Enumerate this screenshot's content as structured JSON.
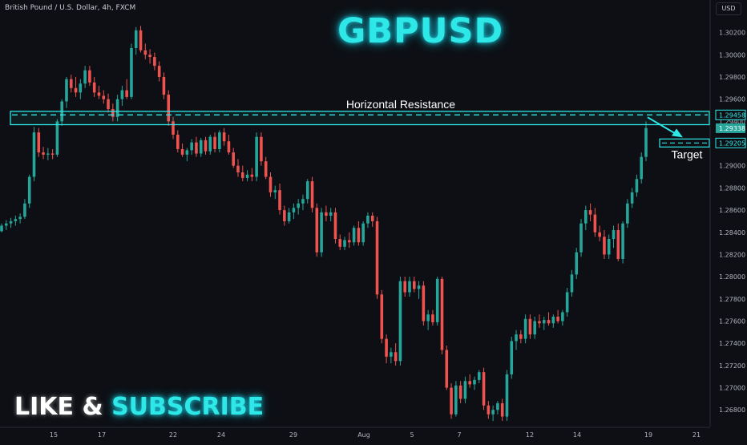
{
  "header": {
    "symbol": "British Pound / U.S. Dollar, 4h, FXCM",
    "currency": "USD"
  },
  "overlay": {
    "title": "GBPUSD",
    "cta_part1": "LIKE & ",
    "cta_part2": "SUBSCRIBE"
  },
  "colors": {
    "bull": "#26a69a",
    "bear": "#ef5350",
    "accent": "#2ee8e8",
    "background": "#0d0f14"
  },
  "chart_data": {
    "type": "candlestick",
    "title": "GBPUSD",
    "ylim": [
      1.2665,
      1.3045
    ],
    "y_ticks": [
      "1.30200",
      "1.30000",
      "1.29800",
      "1.29600",
      "1.29400",
      "1.29200",
      "1.29000",
      "1.28800",
      "1.28600",
      "1.28400",
      "1.28200",
      "1.28000",
      "1.27800",
      "1.27600",
      "1.27400",
      "1.27200",
      "1.27000",
      "1.26800"
    ],
    "x_ticks": [
      "15",
      "17",
      "22",
      "24",
      "29",
      "Aug",
      "5",
      "7",
      "12",
      "14",
      "19",
      "21"
    ],
    "price_labels": [
      {
        "text": "1.29458",
        "style": "outline"
      },
      {
        "text": "1.29338",
        "style": "green"
      },
      {
        "text": "1.29205",
        "style": "outline"
      }
    ],
    "annotations": {
      "resistance_label": "Horizontal Resistance",
      "resistance_low": 1.2937,
      "resistance_high": 1.2949,
      "resistance_level": 1.29458,
      "target_label": "Target",
      "target_level": 1.29205,
      "grid": false
    },
    "ohlc": [
      [
        1.2841,
        1.2848,
        1.284,
        1.2846
      ],
      [
        1.2846,
        1.2851,
        1.2842,
        1.2848
      ],
      [
        1.2848,
        1.2853,
        1.2844,
        1.285
      ],
      [
        1.285,
        1.2855,
        1.2846,
        1.2852
      ],
      [
        1.2852,
        1.2857,
        1.2848,
        1.2854
      ],
      [
        1.2854,
        1.287,
        1.2852,
        1.2866
      ],
      [
        1.2866,
        1.2892,
        1.2862,
        1.289
      ],
      [
        1.289,
        1.2935,
        1.2886,
        1.293
      ],
      [
        1.293,
        1.2934,
        1.2908,
        1.2912
      ],
      [
        1.2912,
        1.2917,
        1.2906,
        1.291
      ],
      [
        1.291,
        1.2916,
        1.2905,
        1.2911
      ],
      [
        1.2911,
        1.2915,
        1.2906,
        1.291
      ],
      [
        1.291,
        1.2942,
        1.2908,
        1.294
      ],
      [
        1.294,
        1.296,
        1.2936,
        1.2958
      ],
      [
        1.2958,
        1.298,
        1.2952,
        1.2978
      ],
      [
        1.2978,
        1.2982,
        1.2966,
        1.297
      ],
      [
        1.297,
        1.298,
        1.2962,
        1.2966
      ],
      [
        1.2966,
        1.2978,
        1.296,
        1.2974
      ],
      [
        1.2974,
        1.299,
        1.297,
        1.2986
      ],
      [
        1.2986,
        1.299,
        1.2972,
        1.2975
      ],
      [
        1.2975,
        1.298,
        1.2962,
        1.2966
      ],
      [
        1.2966,
        1.2972,
        1.296,
        1.2963
      ],
      [
        1.2963,
        1.2968,
        1.2956,
        1.296
      ],
      [
        1.296,
        1.2965,
        1.2948,
        1.2951
      ],
      [
        1.2951,
        1.2956,
        1.294,
        1.2944
      ],
      [
        1.2944,
        1.2964,
        1.294,
        1.296
      ],
      [
        1.296,
        1.2972,
        1.2954,
        1.2968
      ],
      [
        1.2968,
        1.2978,
        1.296,
        1.2962
      ],
      [
        1.2962,
        1.301,
        1.296,
        1.3006
      ],
      [
        1.3006,
        1.3025,
        1.3,
        1.3022
      ],
      [
        1.3022,
        1.3026,
        1.3002,
        1.3004
      ],
      [
        1.3004,
        1.301,
        1.2996,
        1.3
      ],
      [
        1.3,
        1.3005,
        1.2992,
        1.2998
      ],
      [
        1.2998,
        1.3002,
        1.2986,
        1.299
      ],
      [
        1.299,
        1.2994,
        1.2976,
        1.298
      ],
      [
        1.298,
        1.2984,
        1.296,
        1.2964
      ],
      [
        1.2964,
        1.2968,
        1.2936,
        1.294
      ],
      [
        1.294,
        1.2944,
        1.2924,
        1.2928
      ],
      [
        1.2928,
        1.2932,
        1.2912,
        1.2915
      ],
      [
        1.2915,
        1.292,
        1.2908,
        1.291
      ],
      [
        1.291,
        1.2916,
        1.2904,
        1.2914
      ],
      [
        1.2914,
        1.2924,
        1.291,
        1.2921
      ],
      [
        1.2921,
        1.2926,
        1.2908,
        1.2911
      ],
      [
        1.2911,
        1.2925,
        1.2908,
        1.2923
      ],
      [
        1.2923,
        1.2926,
        1.291,
        1.2913
      ],
      [
        1.2913,
        1.2928,
        1.291,
        1.2926
      ],
      [
        1.2926,
        1.293,
        1.2912,
        1.2915
      ],
      [
        1.2915,
        1.2932,
        1.2912,
        1.293
      ],
      [
        1.293,
        1.2934,
        1.2918,
        1.2922
      ],
      [
        1.2922,
        1.2928,
        1.291,
        1.2912
      ],
      [
        1.2912,
        1.2916,
        1.2898,
        1.29
      ],
      [
        1.29,
        1.2906,
        1.289,
        1.2894
      ],
      [
        1.2894,
        1.29,
        1.2886,
        1.2889
      ],
      [
        1.2889,
        1.2896,
        1.2886,
        1.2892
      ],
      [
        1.2892,
        1.2898,
        1.2886,
        1.289
      ],
      [
        1.289,
        1.293,
        1.2886,
        1.2926
      ],
      [
        1.2926,
        1.293,
        1.29,
        1.2904
      ],
      [
        1.2904,
        1.2908,
        1.2888,
        1.289
      ],
      [
        1.289,
        1.2894,
        1.2872,
        1.2876
      ],
      [
        1.2876,
        1.2882,
        1.287,
        1.2878
      ],
      [
        1.2878,
        1.2884,
        1.2856,
        1.286
      ],
      [
        1.286,
        1.2864,
        1.2846,
        1.285
      ],
      [
        1.285,
        1.2862,
        1.2848,
        1.2858
      ],
      [
        1.2858,
        1.2866,
        1.2852,
        1.2862
      ],
      [
        1.2862,
        1.287,
        1.2856,
        1.2866
      ],
      [
        1.2866,
        1.2874,
        1.286,
        1.287
      ],
      [
        1.287,
        1.2888,
        1.2866,
        1.2886
      ],
      [
        1.2886,
        1.289,
        1.2858,
        1.2862
      ],
      [
        1.2862,
        1.2866,
        1.2818,
        1.2822
      ],
      [
        1.2822,
        1.2862,
        1.2818,
        1.2858
      ],
      [
        1.2858,
        1.2864,
        1.285,
        1.2855
      ],
      [
        1.2855,
        1.2862,
        1.285,
        1.2858
      ],
      [
        1.2858,
        1.2862,
        1.283,
        1.2834
      ],
      [
        1.2834,
        1.2838,
        1.2824,
        1.2827
      ],
      [
        1.2827,
        1.2836,
        1.2824,
        1.2833
      ],
      [
        1.2833,
        1.284,
        1.2826,
        1.2831
      ],
      [
        1.2831,
        1.2846,
        1.2828,
        1.2844
      ],
      [
        1.2844,
        1.285,
        1.2828,
        1.2831
      ],
      [
        1.2831,
        1.285,
        1.2828,
        1.2848
      ],
      [
        1.2848,
        1.2858,
        1.2844,
        1.2855
      ],
      [
        1.2855,
        1.2858,
        1.2845,
        1.285
      ],
      [
        1.285,
        1.2854,
        1.278,
        1.2784
      ],
      [
        1.2784,
        1.2788,
        1.274,
        1.2744
      ],
      [
        1.2744,
        1.2748,
        1.2722,
        1.2728
      ],
      [
        1.2728,
        1.2736,
        1.2722,
        1.2732
      ],
      [
        1.2732,
        1.274,
        1.272,
        1.2724
      ],
      [
        1.2724,
        1.28,
        1.272,
        1.2796
      ],
      [
        1.2796,
        1.28,
        1.2782,
        1.2786
      ],
      [
        1.2786,
        1.28,
        1.2782,
        1.2796
      ],
      [
        1.2796,
        1.28,
        1.2786,
        1.2789
      ],
      [
        1.2789,
        1.2796,
        1.278,
        1.2792
      ],
      [
        1.2792,
        1.2796,
        1.2756,
        1.276
      ],
      [
        1.276,
        1.277,
        1.2752,
        1.2766
      ],
      [
        1.2766,
        1.277,
        1.2756,
        1.2759
      ],
      [
        1.2759,
        1.28,
        1.2756,
        1.2798
      ],
      [
        1.2798,
        1.28,
        1.273,
        1.2734
      ],
      [
        1.2734,
        1.2738,
        1.2698,
        1.27
      ],
      [
        1.27,
        1.2704,
        1.2672,
        1.2676
      ],
      [
        1.2676,
        1.2706,
        1.2674,
        1.2702
      ],
      [
        1.2702,
        1.2706,
        1.2686,
        1.269
      ],
      [
        1.269,
        1.271,
        1.2686,
        1.2706
      ],
      [
        1.2706,
        1.2712,
        1.27,
        1.2703
      ],
      [
        1.2703,
        1.271,
        1.2698,
        1.2707
      ],
      [
        1.2707,
        1.2716,
        1.2704,
        1.2714
      ],
      [
        1.2714,
        1.2718,
        1.268,
        1.2684
      ],
      [
        1.2684,
        1.2688,
        1.2672,
        1.2676
      ],
      [
        1.2676,
        1.2684,
        1.267,
        1.268
      ],
      [
        1.268,
        1.2688,
        1.2676,
        1.2686
      ],
      [
        1.2686,
        1.269,
        1.267,
        1.2674
      ],
      [
        1.2674,
        1.2716,
        1.267,
        1.2712
      ],
      [
        1.2712,
        1.2746,
        1.2708,
        1.2742
      ],
      [
        1.2742,
        1.2752,
        1.2734,
        1.2748
      ],
      [
        1.2748,
        1.2752,
        1.274,
        1.2744
      ],
      [
        1.2744,
        1.2766,
        1.274,
        1.2762
      ],
      [
        1.2762,
        1.2766,
        1.2744,
        1.2748
      ],
      [
        1.2748,
        1.2764,
        1.2744,
        1.276
      ],
      [
        1.276,
        1.2766,
        1.2754,
        1.2758
      ],
      [
        1.2758,
        1.2764,
        1.2752,
        1.2761
      ],
      [
        1.2761,
        1.2768,
        1.2756,
        1.2758
      ],
      [
        1.2758,
        1.2766,
        1.2754,
        1.2764
      ],
      [
        1.2764,
        1.277,
        1.2758,
        1.276
      ],
      [
        1.276,
        1.277,
        1.2756,
        1.2768
      ],
      [
        1.2768,
        1.279,
        1.2764,
        1.2786
      ],
      [
        1.2786,
        1.2806,
        1.2782,
        1.2802
      ],
      [
        1.2802,
        1.2826,
        1.2798,
        1.2822
      ],
      [
        1.2822,
        1.2852,
        1.2818,
        1.2848
      ],
      [
        1.2848,
        1.2864,
        1.2842,
        1.286
      ],
      [
        1.286,
        1.2866,
        1.285,
        1.2856
      ],
      [
        1.2856,
        1.2862,
        1.2836,
        1.284
      ],
      [
        1.284,
        1.2846,
        1.2832,
        1.2836
      ],
      [
        1.2836,
        1.2842,
        1.2816,
        1.282
      ],
      [
        1.282,
        1.2838,
        1.2816,
        1.2834
      ],
      [
        1.2834,
        1.2846,
        1.2826,
        1.2842
      ],
      [
        1.2842,
        1.2848,
        1.2814,
        1.2816
      ],
      [
        1.2816,
        1.285,
        1.2812,
        1.2848
      ],
      [
        1.2848,
        1.287,
        1.2844,
        1.2866
      ],
      [
        1.2866,
        1.288,
        1.2862,
        1.2876
      ],
      [
        1.2876,
        1.2892,
        1.2872,
        1.2888
      ],
      [
        1.2888,
        1.2912,
        1.2884,
        1.2908
      ],
      [
        1.2908,
        1.294,
        1.2904,
        1.2934
      ]
    ]
  }
}
